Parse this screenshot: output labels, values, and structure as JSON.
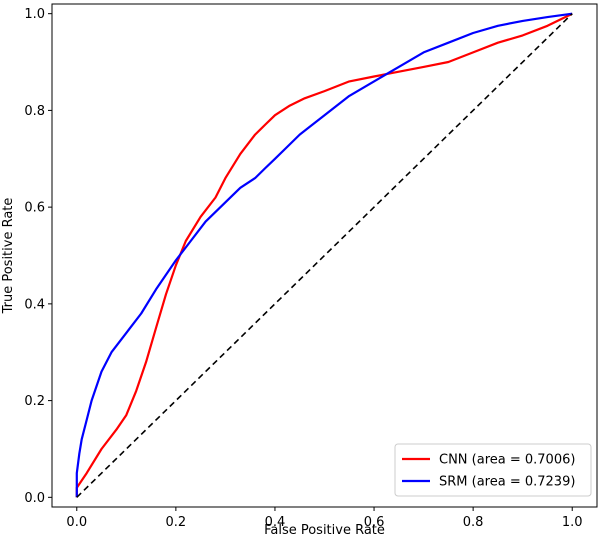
{
  "chart_data": {
    "type": "line",
    "title": "",
    "xlabel": "False Positive Rate",
    "ylabel": "True Positive Rate",
    "xlim": [
      -0.05,
      1.05
    ],
    "ylim": [
      -0.02,
      1.02
    ],
    "xticks": [
      "0.0",
      "0.2",
      "0.4",
      "0.6",
      "0.8",
      "1.0"
    ],
    "yticks": [
      "0.0",
      "0.2",
      "0.4",
      "0.6",
      "0.8",
      "1.0"
    ],
    "grid": false,
    "legend_position": "lower-right",
    "series": [
      {
        "name": "CNN (area = 0.7006)",
        "color": "#ff0000",
        "x": [
          0.0,
          0.0,
          0.02,
          0.05,
          0.08,
          0.1,
          0.12,
          0.14,
          0.16,
          0.18,
          0.2,
          0.22,
          0.25,
          0.28,
          0.3,
          0.33,
          0.36,
          0.38,
          0.4,
          0.43,
          0.46,
          0.5,
          0.55,
          0.6,
          0.65,
          0.7,
          0.75,
          0.8,
          0.85,
          0.9,
          0.95,
          1.0
        ],
        "y": [
          0.0,
          0.02,
          0.05,
          0.1,
          0.14,
          0.17,
          0.22,
          0.28,
          0.35,
          0.42,
          0.48,
          0.53,
          0.58,
          0.62,
          0.66,
          0.71,
          0.75,
          0.77,
          0.79,
          0.81,
          0.825,
          0.84,
          0.86,
          0.87,
          0.88,
          0.89,
          0.9,
          0.92,
          0.94,
          0.955,
          0.975,
          1.0
        ]
      },
      {
        "name": "SRM (area = 0.7239)",
        "color": "#0000ff",
        "x": [
          0.0,
          0.0,
          0.005,
          0.01,
          0.02,
          0.03,
          0.05,
          0.07,
          0.1,
          0.13,
          0.16,
          0.2,
          0.23,
          0.26,
          0.3,
          0.33,
          0.36,
          0.38,
          0.4,
          0.42,
          0.45,
          0.5,
          0.55,
          0.6,
          0.65,
          0.7,
          0.75,
          0.8,
          0.85,
          0.9,
          0.95,
          1.0
        ],
        "y": [
          0.0,
          0.05,
          0.09,
          0.12,
          0.16,
          0.2,
          0.26,
          0.3,
          0.34,
          0.38,
          0.43,
          0.49,
          0.53,
          0.57,
          0.61,
          0.64,
          0.66,
          0.68,
          0.7,
          0.72,
          0.75,
          0.79,
          0.83,
          0.86,
          0.89,
          0.92,
          0.94,
          0.96,
          0.975,
          0.985,
          0.993,
          1.0
        ]
      },
      {
        "name": "",
        "color": "#000000",
        "dashed": true,
        "x": [
          0.0,
          1.0
        ],
        "y": [
          0.0,
          1.0
        ]
      }
    ]
  }
}
